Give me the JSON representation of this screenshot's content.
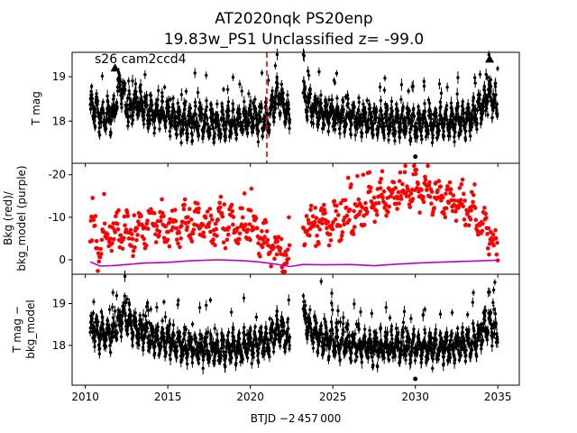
{
  "figure": {
    "title_line1": "AT2020nqk  PS20enp",
    "title_line2": "19.83w_PS1 Unclassified z= -99.0",
    "annotation": "s26 cam2ccd4",
    "xlabel": "BTJD −2 457 000",
    "colors": {
      "points": "#000000",
      "background": "#ff0000",
      "model": "#bf00bf",
      "marker": "#ff0000"
    }
  },
  "chart_data": [
    {
      "type": "scatter",
      "panel": "top",
      "ylabel": "T mag",
      "y_inverted": true,
      "xlim": [
        2009.2,
        2036.3
      ],
      "ylim": [
        19.55,
        17.05
      ],
      "xticks": [
        2010,
        2015,
        2020,
        2025,
        2030,
        2035
      ],
      "yticks": [
        18,
        19
      ],
      "vline_x": 2021.0,
      "segments": [
        [
          2010.3,
          2022.4
        ],
        [
          2023.2,
          2035.0
        ]
      ],
      "baseline": [
        [
          2010.3,
          18.35
        ],
        [
          2011.0,
          18.1
        ],
        [
          2011.7,
          18.15
        ],
        [
          2012.1,
          18.9
        ],
        [
          2012.6,
          18.2
        ],
        [
          2013.2,
          18.45
        ],
        [
          2014.0,
          18.2
        ],
        [
          2015.0,
          18.15
        ],
        [
          2016.0,
          17.95
        ],
        [
          2017.0,
          18.0
        ],
        [
          2018.0,
          17.95
        ],
        [
          2019.0,
          18.0
        ],
        [
          2020.0,
          18.05
        ],
        [
          2021.0,
          18.0
        ],
        [
          2021.7,
          18.6
        ],
        [
          2022.4,
          18.1
        ],
        [
          2023.2,
          18.6
        ],
        [
          2023.6,
          18.3
        ],
        [
          2024.5,
          18.15
        ],
        [
          2026.0,
          18.1
        ],
        [
          2027.5,
          18.0
        ],
        [
          2029.0,
          18.0
        ],
        [
          2030.5,
          17.95
        ],
        [
          2032.0,
          18.0
        ],
        [
          2033.5,
          18.1
        ],
        [
          2034.5,
          18.6
        ],
        [
          2035.0,
          18.3
        ]
      ],
      "outliers": [
        [
          2030.0,
          17.2
        ]
      ],
      "upper_limits": [
        [
          2011.8,
          19.2
        ],
        [
          2034.5,
          19.4
        ]
      ]
    },
    {
      "type": "scatter",
      "panel": "middle",
      "ylabel_line1": "Bkg (red)/",
      "ylabel_line2": "bkg_model (purple)",
      "xlim": [
        2009.2,
        2036.3
      ],
      "ylim": [
        -22.7,
        3.4
      ],
      "yticks": [
        0,
        -10,
        -20
      ],
      "background_trend": [
        [
          2010.3,
          -6
        ],
        [
          2010.8,
          -2
        ],
        [
          2011.3,
          -5
        ],
        [
          2012.0,
          -7
        ],
        [
          2013.0,
          -6
        ],
        [
          2014.0,
          -8
        ],
        [
          2015.0,
          -7
        ],
        [
          2016.5,
          -9
        ],
        [
          2018.0,
          -8
        ],
        [
          2019.5,
          -8
        ],
        [
          2020.5,
          -6
        ],
        [
          2021.5,
          -2
        ],
        [
          2022.4,
          0.5
        ],
        [
          2023.2,
          -7
        ],
        [
          2024.5,
          -8
        ],
        [
          2025.5,
          -9
        ],
        [
          2026.5,
          -11
        ],
        [
          2027.5,
          -14
        ],
        [
          2028.5,
          -15
        ],
        [
          2029.5,
          -16
        ],
        [
          2030.5,
          -16
        ],
        [
          2031.5,
          -15
        ],
        [
          2032.5,
          -13
        ],
        [
          2033.5,
          -11
        ],
        [
          2034.5,
          -6
        ],
        [
          2035.0,
          -1
        ]
      ],
      "model_line": [
        [
          2010.3,
          0.5
        ],
        [
          2010.9,
          1.5
        ],
        [
          2012.0,
          1.3
        ],
        [
          2013.5,
          0.8
        ],
        [
          2015.0,
          0.6
        ],
        [
          2016.5,
          0.2
        ],
        [
          2018.0,
          0.0
        ],
        [
          2019.5,
          0.2
        ],
        [
          2020.5,
          0.5
        ],
        [
          2021.5,
          1.0
        ],
        [
          2022.4,
          1.6
        ],
        [
          2023.2,
          1.1
        ],
        [
          2024.5,
          1.2
        ],
        [
          2026.0,
          1.1
        ],
        [
          2027.5,
          1.4
        ],
        [
          2029.0,
          1.0
        ],
        [
          2030.5,
          0.7
        ],
        [
          2032.0,
          0.5
        ],
        [
          2033.5,
          0.3
        ],
        [
          2035.0,
          0.1
        ]
      ]
    },
    {
      "type": "scatter",
      "panel": "bottom",
      "ylabel_line1": "T mag −",
      "ylabel_line2": "bkg_model",
      "y_inverted": true,
      "xlim": [
        2009.2,
        2036.3
      ],
      "ylim": [
        19.7,
        17.05
      ],
      "yticks": [
        18,
        19
      ],
      "xticks": [
        2010,
        2015,
        2020,
        2025,
        2030,
        2035
      ],
      "xticklabels": [
        "2010",
        "2015",
        "2020",
        "2025",
        "2030",
        "2035"
      ],
      "segments": [
        [
          2010.3,
          2022.4
        ],
        [
          2023.2,
          2035.0
        ]
      ],
      "baseline": [
        [
          2010.3,
          18.45
        ],
        [
          2011.0,
          18.25
        ],
        [
          2011.7,
          18.3
        ],
        [
          2012.3,
          18.75
        ],
        [
          2013.0,
          18.4
        ],
        [
          2014.0,
          18.2
        ],
        [
          2015.0,
          18.1
        ],
        [
          2016.0,
          17.95
        ],
        [
          2017.0,
          17.95
        ],
        [
          2018.0,
          17.9
        ],
        [
          2019.0,
          17.95
        ],
        [
          2020.0,
          18.0
        ],
        [
          2021.0,
          18.05
        ],
        [
          2021.7,
          18.4
        ],
        [
          2022.4,
          18.1
        ],
        [
          2023.2,
          18.8
        ],
        [
          2023.6,
          18.4
        ],
        [
          2024.5,
          18.1
        ],
        [
          2026.0,
          18.05
        ],
        [
          2027.5,
          17.95
        ],
        [
          2029.0,
          18.0
        ],
        [
          2030.5,
          17.95
        ],
        [
          2032.0,
          17.95
        ],
        [
          2033.5,
          18.1
        ],
        [
          2034.5,
          18.5
        ],
        [
          2035.0,
          18.2
        ]
      ],
      "outliers": [
        [
          2030.0,
          17.2
        ]
      ]
    }
  ]
}
